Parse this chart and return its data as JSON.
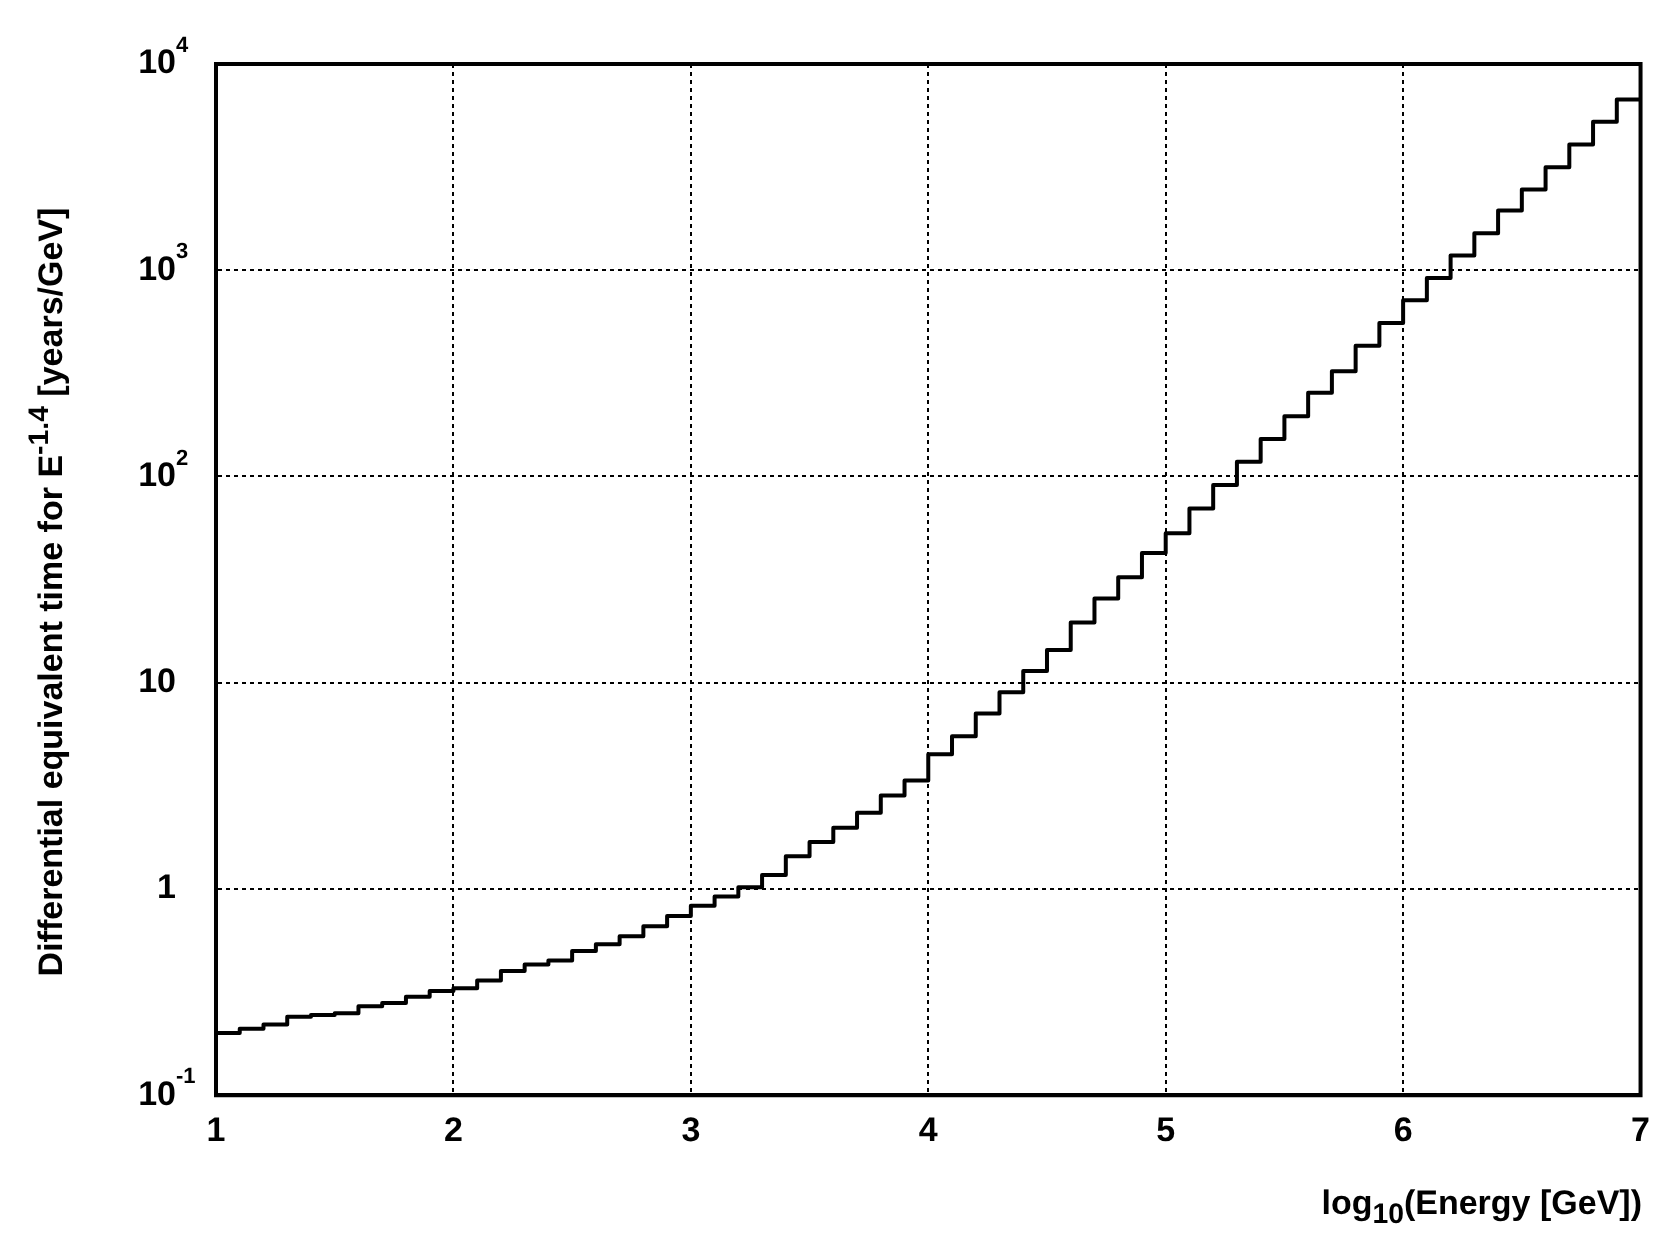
{
  "chart_data": {
    "type": "histogram",
    "xlabel": "log$_{10}$(Energy [GeV])",
    "ylabel": "Differential equivalent time for E$^{-1.4}$ [years/GeV]",
    "bins": [
      1.0,
      1.1,
      1.2,
      1.3,
      1.4,
      1.5,
      1.6,
      1.7,
      1.8,
      1.9,
      2.0,
      2.1,
      2.2,
      2.3,
      2.4,
      2.5,
      2.6,
      2.7,
      2.8,
      2.9,
      3.0,
      3.1,
      3.2,
      3.3,
      3.4,
      3.5,
      3.6,
      3.7,
      3.8,
      3.9,
      4.0,
      4.1,
      4.2,
      4.3,
      4.4,
      4.5,
      4.6,
      4.7,
      4.8,
      4.9,
      5.0,
      5.1,
      5.2,
      5.3,
      5.4,
      5.5,
      5.6,
      5.7,
      5.8,
      5.9,
      6.0,
      6.1,
      6.2,
      6.3,
      6.4,
      6.5,
      6.6,
      6.7,
      6.8,
      6.9,
      7.0
    ],
    "values": [
      0.2,
      0.21,
      0.22,
      0.24,
      0.245,
      0.25,
      0.27,
      0.28,
      0.3,
      0.32,
      0.33,
      0.36,
      0.4,
      0.43,
      0.45,
      0.5,
      0.54,
      0.59,
      0.66,
      0.74,
      0.83,
      0.92,
      1.02,
      1.17,
      1.44,
      1.69,
      1.98,
      2.34,
      2.84,
      3.36,
      4.5,
      5.5,
      7.1,
      9,
      11.4,
      14.4,
      19.6,
      25.6,
      32.5,
      42.6,
      53,
      70,
      91,
      118,
      152,
      196,
      255,
      324,
      431,
      555,
      715,
      916,
      1180,
      1510,
      1950,
      2460,
      3160,
      4070,
      5250,
      6730
    ],
    "color": "#000000",
    "xlim": [
      1,
      7
    ],
    "xticks": [
      1,
      2,
      3,
      4,
      5,
      6,
      7
    ],
    "ylim": [
      0.1,
      10000
    ],
    "yticks": [
      {
        "value": 0.1,
        "label": "10$^{-1}$"
      },
      1,
      10,
      {
        "value": 100,
        "label": "10$^{2}$"
      },
      {
        "value": 1000,
        "label": "10$^{3}$"
      },
      {
        "value": 10000,
        "label": "10$^{4}$"
      }
    ],
    "log": "y",
    "grid": true,
    "line_style": "solid"
  }
}
